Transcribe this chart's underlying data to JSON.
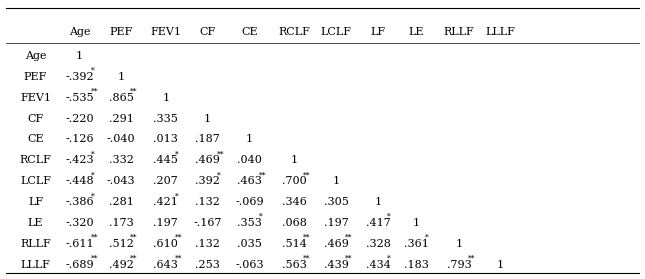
{
  "columns": [
    "",
    "Age",
    "PEF",
    "FEV1",
    "CF",
    "CE",
    "RCLF",
    "LCLF",
    "LF",
    "LE",
    "RLLF",
    "LLLF"
  ],
  "rows": [
    {
      "label": "Age",
      "values": [
        "1",
        "",
        "",
        "",
        "",
        "",
        "",
        "",
        "",
        "",
        ""
      ]
    },
    {
      "label": "PEF",
      "values": [
        "-.392*",
        "1",
        "",
        "",
        "",
        "",
        "",
        "",
        "",
        "",
        ""
      ]
    },
    {
      "label": "FEV1",
      "values": [
        "-.535**",
        ".865**",
        "1",
        "",
        "",
        "",
        "",
        "",
        "",
        "",
        ""
      ]
    },
    {
      "label": "CF",
      "values": [
        "-.220",
        ".291",
        ".335",
        "1",
        "",
        "",
        "",
        "",
        "",
        "",
        ""
      ]
    },
    {
      "label": "CE",
      "values": [
        "-.126",
        "-.040",
        ".013",
        ".187",
        "1",
        "",
        "",
        "",
        "",
        "",
        ""
      ]
    },
    {
      "label": "RCLF",
      "values": [
        "-.423*",
        ".332",
        ".445*",
        ".469**",
        ".040",
        "1",
        "",
        "",
        "",
        "",
        ""
      ]
    },
    {
      "label": "LCLF",
      "values": [
        "-.448*",
        "-.043",
        ".207",
        ".392*",
        ".463**",
        ".700**",
        "1",
        "",
        "",
        "",
        ""
      ]
    },
    {
      "label": "LF",
      "values": [
        "-.386*",
        ".281",
        ".421*",
        ".132",
        "-.069",
        ".346",
        ".305",
        "1",
        "",
        "",
        ""
      ]
    },
    {
      "label": "LE",
      "values": [
        "-.320",
        ".173",
        ".197",
        "-.167",
        ".353*",
        ".068",
        ".197",
        ".417*",
        "1",
        "",
        ""
      ]
    },
    {
      "label": "RLLF",
      "values": [
        "-.611**",
        ".512**",
        ".610**",
        ".132",
        ".035",
        ".514**",
        ".469**",
        ".328",
        ".361*",
        "1",
        ""
      ]
    },
    {
      "label": "LLLF",
      "values": [
        "-.689**",
        ".492**",
        ".643**",
        ".253",
        "-.063",
        ".563**",
        ".439**",
        ".434*",
        ".183",
        ".793**",
        "1"
      ]
    }
  ],
  "font_size": 8.0,
  "sup_font_size": 5.5,
  "bg_color": "#ffffff",
  "text_color": "#000000",
  "line_color": "#000000",
  "figsize": [
    6.45,
    2.79
  ],
  "dpi": 100
}
